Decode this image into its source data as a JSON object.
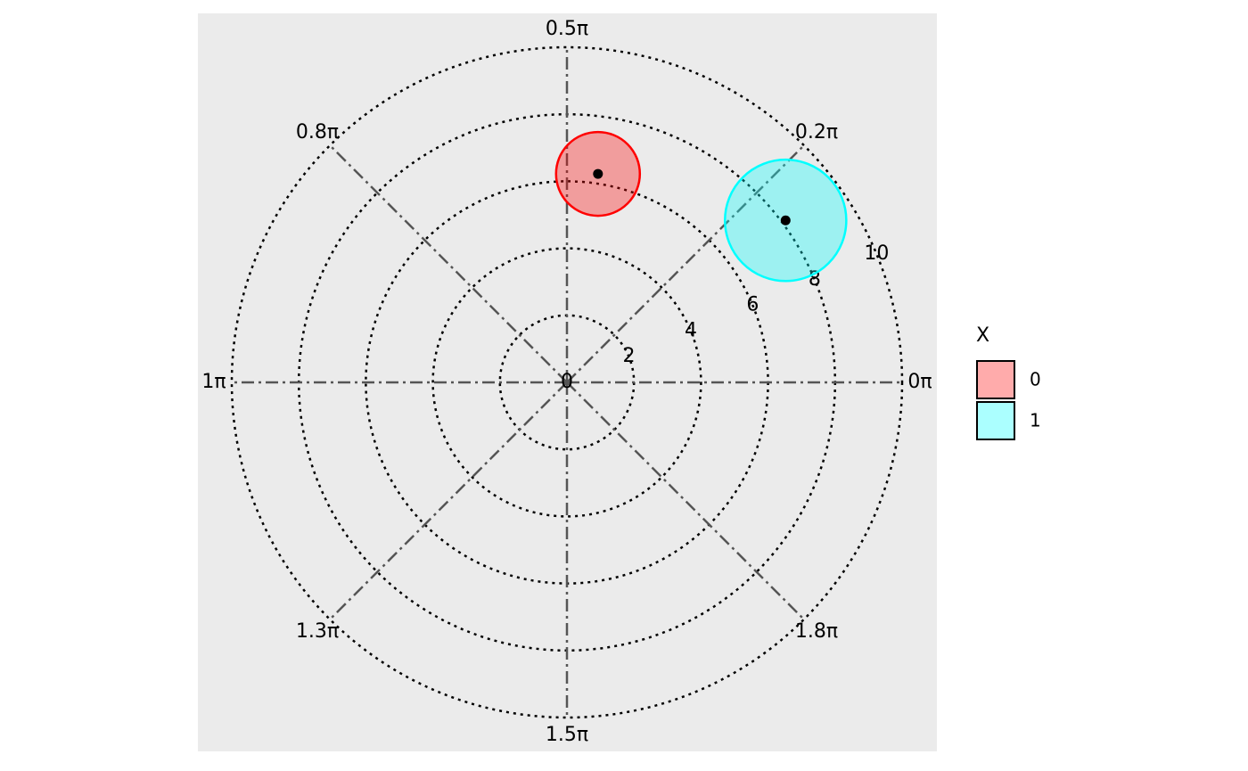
{
  "chart_data": {
    "type": "polar",
    "rlim": [
      0,
      10
    ],
    "rticks": [
      0,
      2,
      4,
      6,
      8,
      10
    ],
    "theta_ticks": [
      {
        "value": 0,
        "label": "0π"
      },
      {
        "value": 0.25,
        "label": "0.2π"
      },
      {
        "value": 0.5,
        "label": "0.5π"
      },
      {
        "value": 0.75,
        "label": "0.8π"
      },
      {
        "value": 1,
        "label": "1π"
      },
      {
        "value": 1.25,
        "label": "1.3π"
      },
      {
        "value": 1.5,
        "label": "1.5π"
      },
      {
        "value": 1.75,
        "label": "1.8π"
      }
    ],
    "legend_title": "X",
    "series": [
      {
        "name": "0",
        "color": "#ff0000",
        "r": 6.29,
        "theta": 0.453,
        "radius": 1.25
      },
      {
        "name": "1",
        "color": "#00ffff",
        "r": 8.12,
        "theta": 0.203,
        "radius": 1.81
      }
    ]
  }
}
